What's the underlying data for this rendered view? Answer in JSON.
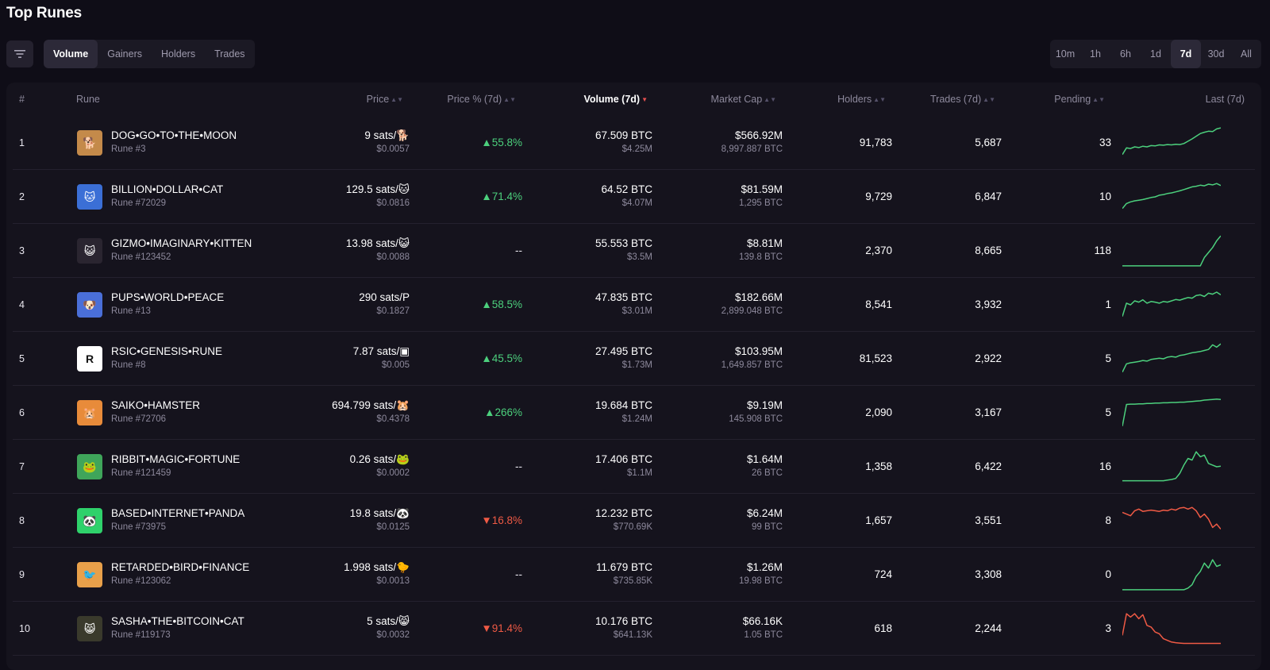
{
  "page": {
    "title": "Top Runes"
  },
  "filter": {
    "icon": "filter-icon"
  },
  "tabs": [
    {
      "label": "Volume",
      "active": true
    },
    {
      "label": "Gainers",
      "active": false
    },
    {
      "label": "Holders",
      "active": false
    },
    {
      "label": "Trades",
      "active": false
    }
  ],
  "timeframes": [
    {
      "label": "10m",
      "active": false
    },
    {
      "label": "1h",
      "active": false
    },
    {
      "label": "6h",
      "active": false
    },
    {
      "label": "1d",
      "active": false
    },
    {
      "label": "7d",
      "active": true
    },
    {
      "label": "30d",
      "active": false
    },
    {
      "label": "All",
      "active": false
    }
  ],
  "columns": {
    "rank": "#",
    "rune": "Rune",
    "price": "Price",
    "price_pct": "Price % (7d)",
    "volume": "Volume (7d)",
    "market_cap": "Market Cap",
    "holders": "Holders",
    "trades": "Trades (7d)",
    "pending": "Pending",
    "last": "Last (7d)"
  },
  "colors": {
    "up": "#4cd07d",
    "down": "#ef5a45",
    "background": "#0f0d17"
  },
  "rows": [
    {
      "rank": "1",
      "name": "DOG•GO•TO•THE•MOON",
      "number": "Rune #3",
      "avatar_color": "#c48a4a",
      "avatar_glyph": "🐕",
      "price": "9 sats/🐕",
      "price_usd": "$0.0057",
      "pct": "▲55.8%",
      "trend": "up",
      "volume": "67.509 BTC",
      "volume_usd": "$4.25M",
      "mcap": "$566.92M",
      "mcap_btc": "8,997.887 BTC",
      "holders": "91,783",
      "trades": "5,687",
      "pending": "33",
      "spark": [
        0.15,
        0.35,
        0.33,
        0.38,
        0.36,
        0.4,
        0.38,
        0.42,
        0.41,
        0.44,
        0.43,
        0.45,
        0.44,
        0.46,
        0.45,
        0.48,
        0.55,
        0.62,
        0.7,
        0.78,
        0.82,
        0.85,
        0.84,
        0.92,
        0.95
      ]
    },
    {
      "rank": "2",
      "name": "BILLION•DOLLAR•CAT",
      "number": "Rune #72029",
      "avatar_color": "#3b6fd6",
      "avatar_glyph": "🐱",
      "price": "129.5 sats/🐱",
      "price_usd": "$0.0816",
      "pct": "▲71.4%",
      "trend": "up",
      "volume": "64.52 BTC",
      "volume_usd": "$4.07M",
      "mcap": "$81.59M",
      "mcap_btc": "1,295 BTC",
      "holders": "9,729",
      "trades": "6,847",
      "pending": "10",
      "spark": [
        0.15,
        0.3,
        0.35,
        0.38,
        0.4,
        0.42,
        0.45,
        0.48,
        0.5,
        0.55,
        0.57,
        0.6,
        0.62,
        0.65,
        0.68,
        0.72,
        0.76,
        0.8,
        0.82,
        0.85,
        0.83,
        0.88,
        0.86,
        0.9,
        0.84
      ]
    },
    {
      "rank": "3",
      "name": "GIZMO•IMAGINARY•KITTEN",
      "number": "Rune #123452",
      "avatar_color": "#2a2530",
      "avatar_glyph": "😺",
      "price": "13.98 sats/😺",
      "price_usd": "$0.0088",
      "pct": "--",
      "trend": "flat",
      "volume": "55.553 BTC",
      "volume_usd": "$3.5M",
      "mcap": "$8.81M",
      "mcap_btc": "139.8 BTC",
      "holders": "2,370",
      "trades": "8,665",
      "pending": "118",
      "spark": [
        0.05,
        0.05,
        0.05,
        0.05,
        0.05,
        0.05,
        0.05,
        0.05,
        0.05,
        0.05,
        0.05,
        0.05,
        0.05,
        0.05,
        0.05,
        0.05,
        0.05,
        0.05,
        0.05,
        0.05,
        0.3,
        0.45,
        0.6,
        0.8,
        0.95
      ]
    },
    {
      "rank": "4",
      "name": "PUPS•WORLD•PEACE",
      "number": "Rune #13",
      "avatar_color": "#4a6fd8",
      "avatar_glyph": "🐶",
      "price": "290 sats/P",
      "price_usd": "$0.1827",
      "pct": "▲58.5%",
      "trend": "up",
      "volume": "47.835 BTC",
      "volume_usd": "$3.01M",
      "mcap": "$182.66M",
      "mcap_btc": "2,899.048 BTC",
      "holders": "8,541",
      "trades": "3,932",
      "pending": "1",
      "spark": [
        0.15,
        0.55,
        0.5,
        0.62,
        0.58,
        0.65,
        0.55,
        0.6,
        0.58,
        0.55,
        0.6,
        0.58,
        0.62,
        0.66,
        0.64,
        0.68,
        0.72,
        0.7,
        0.78,
        0.8,
        0.75,
        0.85,
        0.82,
        0.88,
        0.8
      ]
    },
    {
      "rank": "5",
      "name": "RSIC•GENESIS•RUNE",
      "number": "Rune #8",
      "avatar_color": "#ffffff",
      "avatar_glyph": "R",
      "price": "7.87 sats/▣",
      "price_usd": "$0.005",
      "pct": "▲45.5%",
      "trend": "up",
      "volume": "27.495 BTC",
      "volume_usd": "$1.73M",
      "mcap": "$103.95M",
      "mcap_btc": "1,649.857 BTC",
      "holders": "81,523",
      "trades": "2,922",
      "pending": "5",
      "spark": [
        0.1,
        0.35,
        0.38,
        0.4,
        0.42,
        0.45,
        0.43,
        0.48,
        0.5,
        0.52,
        0.5,
        0.55,
        0.57,
        0.55,
        0.6,
        0.62,
        0.65,
        0.68,
        0.7,
        0.72,
        0.75,
        0.78,
        0.92,
        0.85,
        0.95
      ]
    },
    {
      "rank": "6",
      "name": "SAIKO•HAMSTER",
      "number": "Rune #72706",
      "avatar_color": "#e88b3a",
      "avatar_glyph": "🐹",
      "price": "694.799 sats/🐹",
      "price_usd": "$0.4378",
      "pct": "▲266%",
      "trend": "up",
      "volume": "19.684 BTC",
      "volume_usd": "$1.24M",
      "mcap": "$9.19M",
      "mcap_btc": "145.908 BTC",
      "holders": "2,090",
      "trades": "3,167",
      "pending": "5",
      "spark": [
        0.1,
        0.75,
        0.76,
        0.76,
        0.77,
        0.77,
        0.78,
        0.78,
        0.79,
        0.79,
        0.8,
        0.8,
        0.81,
        0.81,
        0.82,
        0.82,
        0.83,
        0.84,
        0.85,
        0.86,
        0.88,
        0.89,
        0.9,
        0.91,
        0.9
      ]
    },
    {
      "rank": "7",
      "name": "RIBBIT•MAGIC•FORTUNE",
      "number": "Rune #121459",
      "avatar_color": "#3fa55a",
      "avatar_glyph": "🐸",
      "price": "0.26 sats/🐸",
      "price_usd": "$0.0002",
      "pct": "--",
      "trend": "flat",
      "volume": "17.406 BTC",
      "volume_usd": "$1.1M",
      "mcap": "$1.64M",
      "mcap_btc": "26 BTC",
      "holders": "1,358",
      "trades": "6,422",
      "pending": "16",
      "spark": [
        0.08,
        0.08,
        0.08,
        0.08,
        0.08,
        0.08,
        0.08,
        0.08,
        0.08,
        0.08,
        0.08,
        0.1,
        0.12,
        0.15,
        0.3,
        0.55,
        0.75,
        0.7,
        0.95,
        0.8,
        0.85,
        0.6,
        0.55,
        0.5,
        0.52
      ]
    },
    {
      "rank": "8",
      "name": "BASED•INTERNET•PANDA",
      "number": "Rune #73975",
      "avatar_color": "#2fd16b",
      "avatar_glyph": "🐼",
      "price": "19.8 sats/🐼",
      "price_usd": "$0.0125",
      "pct": "▼16.8%",
      "trend": "down",
      "volume": "12.232 BTC",
      "volume_usd": "$770.69K",
      "mcap": "$6.24M",
      "mcap_btc": "99 BTC",
      "holders": "1,657",
      "trades": "3,551",
      "pending": "8",
      "spark": [
        0.75,
        0.7,
        0.65,
        0.8,
        0.85,
        0.78,
        0.8,
        0.82,
        0.8,
        0.78,
        0.82,
        0.8,
        0.85,
        0.82,
        0.88,
        0.9,
        0.85,
        0.9,
        0.8,
        0.6,
        0.7,
        0.55,
        0.3,
        0.4,
        0.25
      ]
    },
    {
      "rank": "9",
      "name": "RETARDED•BIRD•FINANCE",
      "number": "Rune #123062",
      "avatar_color": "#e8a04a",
      "avatar_glyph": "🐦",
      "price": "1.998 sats/🐤",
      "price_usd": "$0.0013",
      "pct": "--",
      "trend": "flat",
      "volume": "11.679 BTC",
      "volume_usd": "$735.85K",
      "mcap": "$1.26M",
      "mcap_btc": "19.98 BTC",
      "holders": "724",
      "trades": "3,308",
      "pending": "0",
      "spark": [
        0.05,
        0.05,
        0.05,
        0.05,
        0.05,
        0.05,
        0.05,
        0.05,
        0.05,
        0.05,
        0.05,
        0.05,
        0.05,
        0.05,
        0.05,
        0.05,
        0.1,
        0.2,
        0.45,
        0.6,
        0.85,
        0.7,
        0.95,
        0.75,
        0.8
      ]
    },
    {
      "rank": "10",
      "name": "SASHA•THE•BITCOIN•CAT",
      "number": "Rune #119173",
      "avatar_color": "#3a3a2c",
      "avatar_glyph": "😸",
      "price": "5 sats/😸",
      "price_usd": "$0.0032",
      "pct": "▼91.4%",
      "trend": "down",
      "volume": "10.176 BTC",
      "volume_usd": "$641.13K",
      "mcap": "$66.16K",
      "mcap_btc": "1.05 BTC",
      "holders": "618",
      "trades": "2,244",
      "pending": "3",
      "spark": [
        0.3,
        0.95,
        0.85,
        0.95,
        0.8,
        0.92,
        0.6,
        0.55,
        0.4,
        0.35,
        0.2,
        0.15,
        0.1,
        0.08,
        0.07,
        0.06,
        0.06,
        0.06,
        0.06,
        0.06,
        0.06,
        0.06,
        0.06,
        0.06,
        0.06
      ]
    }
  ]
}
